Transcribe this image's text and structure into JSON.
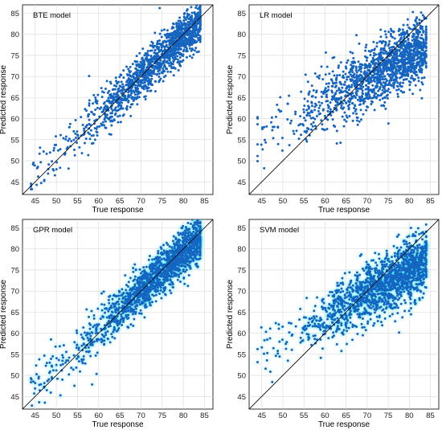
{
  "colors": {
    "point": "#1565c0",
    "halo": "#00e5ff",
    "dense": "#0d47a1",
    "ideal_line": "#000000",
    "grid": "#d9d9d9"
  },
  "chart_data": [
    {
      "type": "scatter",
      "title": "BTE model",
      "xlabel": "True response",
      "ylabel": "Predicted response",
      "xlim": [
        42,
        87
      ],
      "ylim": [
        42,
        87
      ],
      "xticks": [
        45,
        50,
        55,
        60,
        65,
        70,
        75,
        80,
        85
      ],
      "yticks": [
        45,
        50,
        55,
        60,
        65,
        70,
        75,
        80,
        85
      ],
      "grid": true,
      "reference_line": "y = x",
      "points": {
        "count": 1500,
        "seed": 11,
        "x_range": [
          44,
          84
        ],
        "x_trend_slope": 0.92,
        "x_trend_at": [
          72,
          72
        ],
        "y_spread": 2.6,
        "y_spread_at_low_x": 3.2,
        "cyan_halo": false
      }
    },
    {
      "type": "scatter",
      "title": "LR model",
      "xlabel": "True response",
      "ylabel": "Predicted response",
      "xlim": [
        42,
        87
      ],
      "ylim": [
        42,
        87
      ],
      "xticks": [
        45,
        50,
        55,
        60,
        65,
        70,
        75,
        80,
        85
      ],
      "yticks": [
        45,
        50,
        55,
        60,
        65,
        70,
        75,
        80,
        85
      ],
      "grid": true,
      "reference_line": "y = x",
      "points": {
        "count": 1500,
        "seed": 23,
        "x_range": [
          44,
          84
        ],
        "x_trend_slope": 0.55,
        "x_trend_at": [
          72,
          70.5
        ],
        "y_spread": 3.8,
        "y_spread_at_low_x": 3.6,
        "cyan_halo": false
      }
    },
    {
      "type": "scatter",
      "title": "GPR model",
      "xlabel": "True response",
      "ylabel": "Predicted response",
      "xlim": [
        42,
        87
      ],
      "ylim": [
        42,
        87
      ],
      "xticks": [
        45,
        50,
        55,
        60,
        65,
        70,
        75,
        80,
        85
      ],
      "yticks": [
        45,
        50,
        55,
        60,
        65,
        70,
        75,
        80,
        85
      ],
      "grid": true,
      "reference_line": "y = x",
      "points": {
        "count": 1500,
        "seed": 37,
        "x_range": [
          44,
          84
        ],
        "x_trend_slope": 0.9,
        "x_trend_at": [
          72,
          71.8
        ],
        "y_spread": 2.7,
        "y_spread_at_low_x": 3.2,
        "cyan_halo": true
      }
    },
    {
      "type": "scatter",
      "title": "SVM model",
      "xlabel": "True response",
      "ylabel": "Predicted response",
      "xlim": [
        42,
        87
      ],
      "ylim": [
        42,
        87
      ],
      "xticks": [
        45,
        50,
        55,
        60,
        65,
        70,
        75,
        80,
        85
      ],
      "yticks": [
        45,
        50,
        55,
        60,
        65,
        70,
        75,
        80,
        85
      ],
      "grid": true,
      "reference_line": "y = x",
      "points": {
        "count": 1500,
        "seed": 53,
        "x_range": [
          44,
          84
        ],
        "x_trend_slope": 0.55,
        "x_trend_at": [
          72,
          70.5
        ],
        "y_spread": 3.6,
        "y_spread_at_low_x": 3.4,
        "cyan_halo": true
      }
    }
  ]
}
